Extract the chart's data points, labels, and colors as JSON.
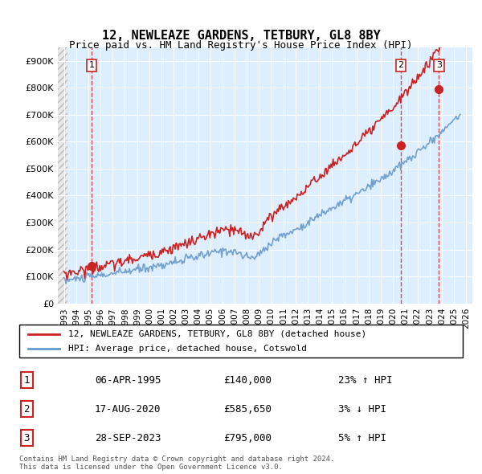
{
  "title1": "12, NEWLEAZE GARDENS, TETBURY, GL8 8BY",
  "title2": "Price paid vs. HM Land Registry's House Price Index (HPI)",
  "ylabel": "",
  "xlim": [
    1992.5,
    2026.5
  ],
  "ylim": [
    0,
    950000
  ],
  "yticks": [
    0,
    100000,
    200000,
    300000,
    400000,
    500000,
    600000,
    700000,
    800000,
    900000
  ],
  "ytick_labels": [
    "£0",
    "£100K",
    "£200K",
    "£300K",
    "£400K",
    "£500K",
    "£600K",
    "£700K",
    "£800K",
    "£900K"
  ],
  "xticks": [
    1993,
    1994,
    1995,
    1996,
    1997,
    1998,
    1999,
    2000,
    2001,
    2002,
    2003,
    2004,
    2005,
    2006,
    2007,
    2008,
    2009,
    2010,
    2011,
    2012,
    2013,
    2014,
    2015,
    2016,
    2017,
    2018,
    2019,
    2020,
    2021,
    2022,
    2023,
    2024,
    2025,
    2026
  ],
  "hpi_color": "#6699cc",
  "price_color": "#cc2222",
  "purchase1_x": 1995.27,
  "purchase1_y": 140000,
  "purchase2_x": 2020.63,
  "purchase2_y": 585650,
  "purchase3_x": 2023.75,
  "purchase3_y": 795000,
  "legend_label1": "12, NEWLEAZE GARDENS, TETBURY, GL8 8BY (detached house)",
  "legend_label2": "HPI: Average price, detached house, Cotswold",
  "table_rows": [
    {
      "num": "1",
      "date": "06-APR-1995",
      "price": "£140,000",
      "hpi": "23% ↑ HPI"
    },
    {
      "num": "2",
      "date": "17-AUG-2020",
      "price": "£585,650",
      "hpi": "3% ↓ HPI"
    },
    {
      "num": "3",
      "date": "28-SEP-2023",
      "price": "£795,000",
      "hpi": "5% ↑ HPI"
    }
  ],
  "footnote1": "Contains HM Land Registry data © Crown copyright and database right 2024.",
  "footnote2": "This data is licensed under the Open Government Licence v3.0.",
  "hatch_color": "#cccccc",
  "grid_color": "#ccddee",
  "bg_color": "#ddeeff"
}
